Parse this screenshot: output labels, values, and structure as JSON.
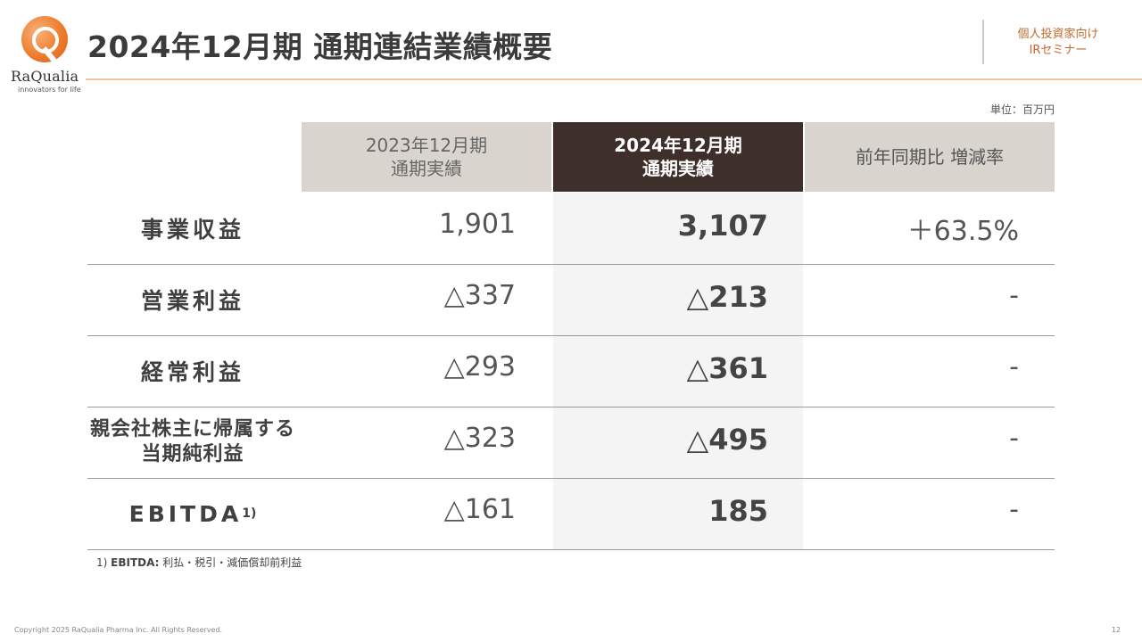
{
  "logo": {
    "name": "RaQualia",
    "tagline": "innovators for life"
  },
  "title": "2024年12月期 通期連結業績概要",
  "audience": {
    "line1": "個人投資家向け",
    "line2": "IRセミナー"
  },
  "unit": "単位：百万円",
  "columns": {
    "prev": {
      "line1": "2023年12月期",
      "line2": "通期実績"
    },
    "current": {
      "line1": "2024年12月期",
      "line2": "通期実績"
    },
    "change": "前年同期比 増減率"
  },
  "rows": [
    {
      "label": "事業収益",
      "label2": "",
      "prev": "1,901",
      "current": "3,107",
      "change": "＋63.5%"
    },
    {
      "label": "営業利益",
      "label2": "",
      "prev": "△337",
      "current": "△213",
      "change": "-"
    },
    {
      "label": "経常利益",
      "label2": "",
      "prev": "△293",
      "current": "△361",
      "change": "-"
    },
    {
      "label": "親会社株主に帰属する",
      "label2": "当期純利益",
      "prev": "△323",
      "current": "△495",
      "change": "-"
    },
    {
      "label": "EBITDA",
      "sup": "1)",
      "prev": "△161",
      "current": "185",
      "change": "-"
    }
  ],
  "footnote": {
    "num": "1)",
    "term": "EBITDA:",
    "text": "利払・税引・減価償却前利益"
  },
  "copyright": "Copyright 2025 RaQualia Pharma Inc. All Rights Reserved.",
  "page_number": "12",
  "colors": {
    "accent": "#ee7d2d",
    "header_dark": "#3e2f2b",
    "header_light": "#d9d5ce",
    "rule": "#f4c39a"
  }
}
